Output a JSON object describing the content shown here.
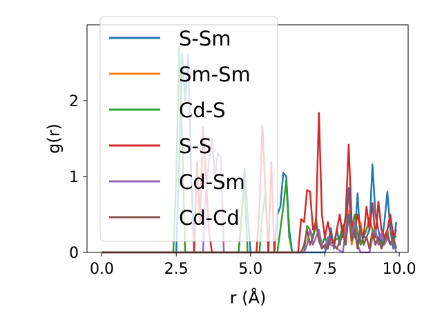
{
  "chart_data": {
    "type": "line",
    "xlabel": "r (Å)",
    "ylabel": "g(r)",
    "xlim": [
      -0.5,
      10.3
    ],
    "ylim": [
      0,
      3.0
    ],
    "xticks": [
      0.0,
      2.5,
      5.0,
      7.5,
      10.0
    ],
    "xtick_labels": [
      "0.0",
      "2.5",
      "5.0",
      "7.5",
      "10.0"
    ],
    "yticks": [
      0,
      1,
      2
    ],
    "ytick_labels": [
      "0",
      "1",
      "2"
    ],
    "grid": false,
    "legend_position": "upper-left",
    "series": [
      {
        "name": "S-Sm",
        "color": "#1f77b4",
        "x": [
          0,
          2.5,
          2.6,
          2.7,
          2.8,
          2.9,
          3.0,
          3.1,
          4.6,
          4.7,
          4.8,
          4.9,
          5.0,
          5.8,
          5.9,
          6.0,
          6.1,
          6.2,
          6.3,
          6.4,
          7.5,
          7.6,
          7.7,
          7.8,
          7.9,
          8.0,
          8.1,
          8.2,
          8.3,
          8.4,
          8.5,
          8.6,
          8.7,
          8.8,
          8.9,
          9.0,
          9.1,
          9.2,
          9.3,
          9.4,
          9.5,
          9.6,
          9.7,
          9.8,
          9.9
        ],
        "y": [
          0,
          0,
          1.2,
          2.62,
          2.0,
          2.6,
          1.1,
          0,
          0,
          0.5,
          1.1,
          0.5,
          0,
          0,
          0.5,
          0.6,
          1.05,
          1.0,
          0.3,
          0,
          0,
          0.1,
          0.32,
          0.05,
          0.3,
          0.1,
          0.3,
          0.2,
          0.85,
          0.3,
          0.2,
          0.78,
          0.1,
          0.2,
          0.2,
          0.3,
          1.16,
          0.5,
          0.3,
          0.1,
          0.4,
          0.8,
          0.3,
          0.05,
          0.4
        ]
      },
      {
        "name": "Sm-Sm",
        "color": "#ff7f0e",
        "x": [
          0,
          6.7,
          6.8,
          6.9,
          7.0,
          7.1,
          7.2,
          7.3,
          7.4,
          7.5,
          7.6,
          7.7,
          7.8,
          7.9,
          8.0,
          8.1,
          8.2,
          8.3,
          8.4,
          8.5,
          8.6,
          8.7,
          8.8,
          8.9,
          9.0,
          9.1,
          9.2,
          9.3,
          9.4,
          9.5,
          9.6,
          9.7,
          9.8,
          9.9
        ],
        "y": [
          0,
          0,
          0.1,
          0.3,
          0.1,
          0.2,
          0.45,
          0.2,
          0.05,
          0.1,
          0.05,
          0.2,
          0.1,
          0.05,
          0.15,
          0.3,
          0.1,
          0.55,
          0.1,
          0.3,
          0.05,
          0.4,
          0.1,
          0.2,
          0.05,
          0.3,
          0.1,
          0.2,
          0.05,
          0.15,
          0.3,
          0.1,
          0.2,
          0.05
        ]
      },
      {
        "name": "Cd-S",
        "color": "#2ca02c",
        "x": [
          0,
          2.4,
          2.5,
          2.6,
          2.7,
          2.8,
          4.6,
          4.7,
          4.8,
          4.9,
          5.3,
          5.4,
          5.5,
          5.6,
          5.9,
          6.0,
          6.1,
          6.2,
          6.3,
          6.4,
          6.8,
          6.9,
          7.0,
          7.1,
          7.2,
          7.3,
          7.4,
          7.5,
          7.6,
          8.0,
          8.1,
          8.2,
          8.3,
          8.4,
          8.5,
          8.6,
          8.7,
          8.8,
          8.9,
          9.0,
          9.1,
          9.2,
          9.3,
          9.4,
          9.5,
          9.6,
          9.7,
          9.8,
          9.9
        ],
        "y": [
          0,
          0,
          1.0,
          2.72,
          1.5,
          0,
          0,
          0.5,
          0.9,
          0,
          0,
          0.5,
          0.8,
          0,
          0,
          0.3,
          0.6,
          0.95,
          0.2,
          0,
          0,
          0.35,
          0.3,
          0.2,
          0.35,
          0.25,
          0.1,
          0.2,
          0.1,
          0.2,
          0.35,
          0.4,
          0.45,
          0.3,
          0.5,
          0.25,
          0.1,
          0.2,
          0.3,
          0.45,
          0.3,
          0.2,
          0.2,
          0.1,
          0.2,
          0.3,
          0.45,
          0.25,
          0.2
        ]
      },
      {
        "name": "S-S",
        "color": "#d62728",
        "x": [
          0,
          3.1,
          3.2,
          3.3,
          3.4,
          3.5,
          3.6,
          3.7,
          5.2,
          5.3,
          5.4,
          5.5,
          5.6,
          5.7,
          5.8,
          6.6,
          6.7,
          6.8,
          6.9,
          7.0,
          7.1,
          7.2,
          7.3,
          7.4,
          7.5,
          7.6,
          7.7,
          7.8,
          7.9,
          8.0,
          8.1,
          8.2,
          8.3,
          8.4,
          8.5,
          8.6,
          8.7,
          8.8,
          8.9,
          9.0,
          9.1,
          9.2,
          9.3,
          9.4,
          9.5,
          9.6,
          9.7,
          9.8,
          9.9
        ],
        "y": [
          0,
          0,
          1.2,
          0.4,
          1.65,
          1.0,
          0.3,
          0,
          0,
          0.6,
          1.68,
          0.8,
          0,
          1.2,
          0,
          0,
          0.44,
          0.4,
          0.82,
          0.8,
          0.3,
          0.4,
          1.84,
          0.5,
          0.2,
          0.4,
          0.2,
          0.1,
          0.3,
          0.5,
          0.2,
          0.5,
          1.42,
          0.4,
          0.3,
          0.5,
          0.3,
          0.2,
          0.6,
          0.3,
          0.65,
          0.2,
          0.67,
          0.3,
          0.2,
          0.3,
          0.5,
          0.2,
          0.3
        ]
      },
      {
        "name": "Cd-Sm",
        "color": "#9467bd",
        "x": [
          0,
          3.4,
          3.5,
          3.6,
          3.7,
          3.8,
          3.9,
          4.0,
          4.1,
          6.8,
          6.9,
          7.0,
          7.1,
          7.2,
          7.3,
          7.4,
          7.5,
          7.6,
          7.7,
          8.1,
          8.2,
          8.3,
          8.4,
          8.5,
          8.6,
          8.7,
          9.0,
          9.1,
          9.2,
          9.3,
          9.4,
          9.5,
          9.6,
          9.7,
          9.8,
          9.9
        ],
        "y": [
          0,
          0,
          0.8,
          1.2,
          1.5,
          1.0,
          1.3,
          1.25,
          0,
          0,
          0.1,
          0.3,
          0.1,
          0.2,
          0.3,
          0.1,
          0.05,
          0.2,
          0.1,
          0,
          0.3,
          0.5,
          0.2,
          0.4,
          0.1,
          0,
          0,
          0.2,
          0.3,
          0.1,
          0.25,
          0.1,
          0.2,
          0.1,
          0.15,
          0
        ]
      },
      {
        "name": "Cd-Cd",
        "color": "#8c564b",
        "x": [
          0,
          6.7,
          6.8,
          6.9,
          7.0,
          7.1,
          7.2,
          7.3,
          7.4,
          7.5,
          7.6,
          7.7,
          7.8,
          7.9,
          8.0,
          8.1,
          8.2,
          8.3,
          8.4,
          8.5,
          8.6,
          8.7,
          8.8,
          8.9,
          9.0,
          9.1,
          9.2,
          9.3,
          9.4,
          9.5,
          9.6,
          9.7,
          9.8,
          9.9
        ],
        "y": [
          0,
          0,
          0.1,
          0.3,
          0.1,
          0.2,
          0.4,
          0.15,
          0.05,
          0.1,
          0.05,
          0.2,
          0.1,
          0.05,
          0.15,
          0.25,
          0.1,
          0.5,
          0.15,
          0.3,
          0.05,
          0.35,
          0.1,
          0.2,
          0.05,
          0.25,
          0.1,
          0.2,
          0.05,
          0.15,
          0.25,
          0.1,
          0.2,
          0.05
        ]
      }
    ]
  }
}
